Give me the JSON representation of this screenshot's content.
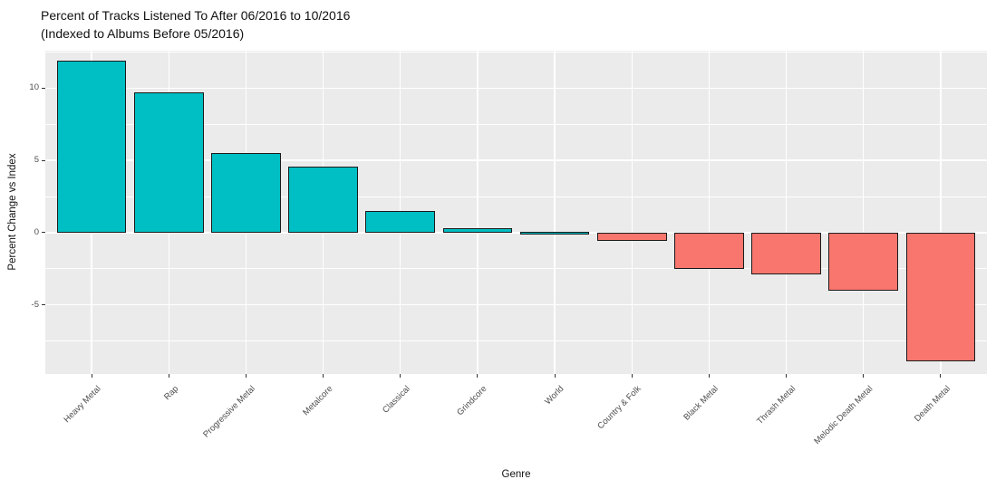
{
  "title": {
    "line1": "Percent of Tracks Listened To After 06/2016 to 10/2016",
    "line2": "(Indexed to Albums Before 05/2016)"
  },
  "chart_data": {
    "type": "bar",
    "title": "Percent of Tracks Listened To After 06/2016 to 10/2016 (Indexed to Albums Before 05/2016)",
    "xlabel": "Genre",
    "ylabel": "Percent Change vs Index",
    "categories": [
      "Heavy Metal",
      "Rap",
      "Progressive Metal",
      "Metalcore",
      "Classical",
      "Grindcore",
      "World",
      "Country & Folk",
      "Black Metal",
      "Thrash Metal",
      "Melodic Death Metal",
      "Death Metal"
    ],
    "values": [
      11.9,
      9.7,
      5.5,
      4.6,
      1.5,
      0.3,
      0.05,
      -0.6,
      -2.5,
      -2.9,
      -4.0,
      -8.9
    ],
    "ylim": [
      -9.8,
      12.6
    ],
    "yticks": [
      -5,
      0,
      5,
      10
    ],
    "yticks_minor": [
      -7.5,
      -2.5,
      2.5,
      7.5,
      12.5
    ],
    "legend_position": "none",
    "grid": "horizontal major+minor, vertical major at category centers",
    "colors": {
      "positive_bar": "#00BFC4",
      "negative_bar": "#F8766D",
      "bar_outline": "#1A1A1A",
      "panel_background": "#EBEBEB",
      "gridline": "#FFFFFF",
      "axis_text": "#4D4D4D",
      "tick_mark": "#333333",
      "title_text": "#111111"
    }
  }
}
